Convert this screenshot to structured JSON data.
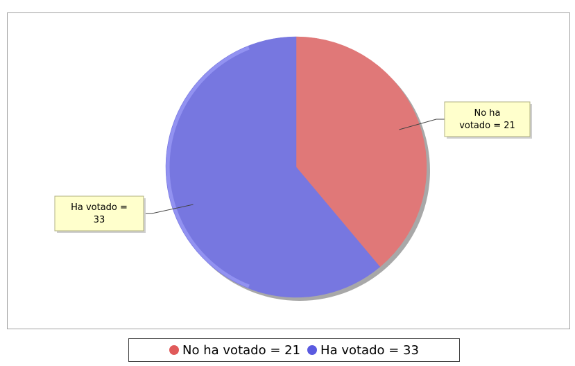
{
  "chart_data": {
    "type": "pie",
    "title": "",
    "slices": [
      {
        "label": "No ha votado",
        "value": 21,
        "display": "No ha votado = 21",
        "callout_lines": [
          "No ha",
          "votado = 21"
        ],
        "color": "#e07878"
      },
      {
        "label": "Ha votado",
        "value": 33,
        "display": "Ha votado = 33",
        "callout_lines": [
          "Ha votado =",
          "33"
        ],
        "color": "#7777e0"
      }
    ],
    "legend": {
      "placement": "bottom",
      "items": [
        {
          "text": "No ha votado = 21",
          "color": "#e05a5a"
        },
        {
          "text": "Ha votado = 33",
          "color": "#5a5ae0"
        }
      ]
    }
  }
}
